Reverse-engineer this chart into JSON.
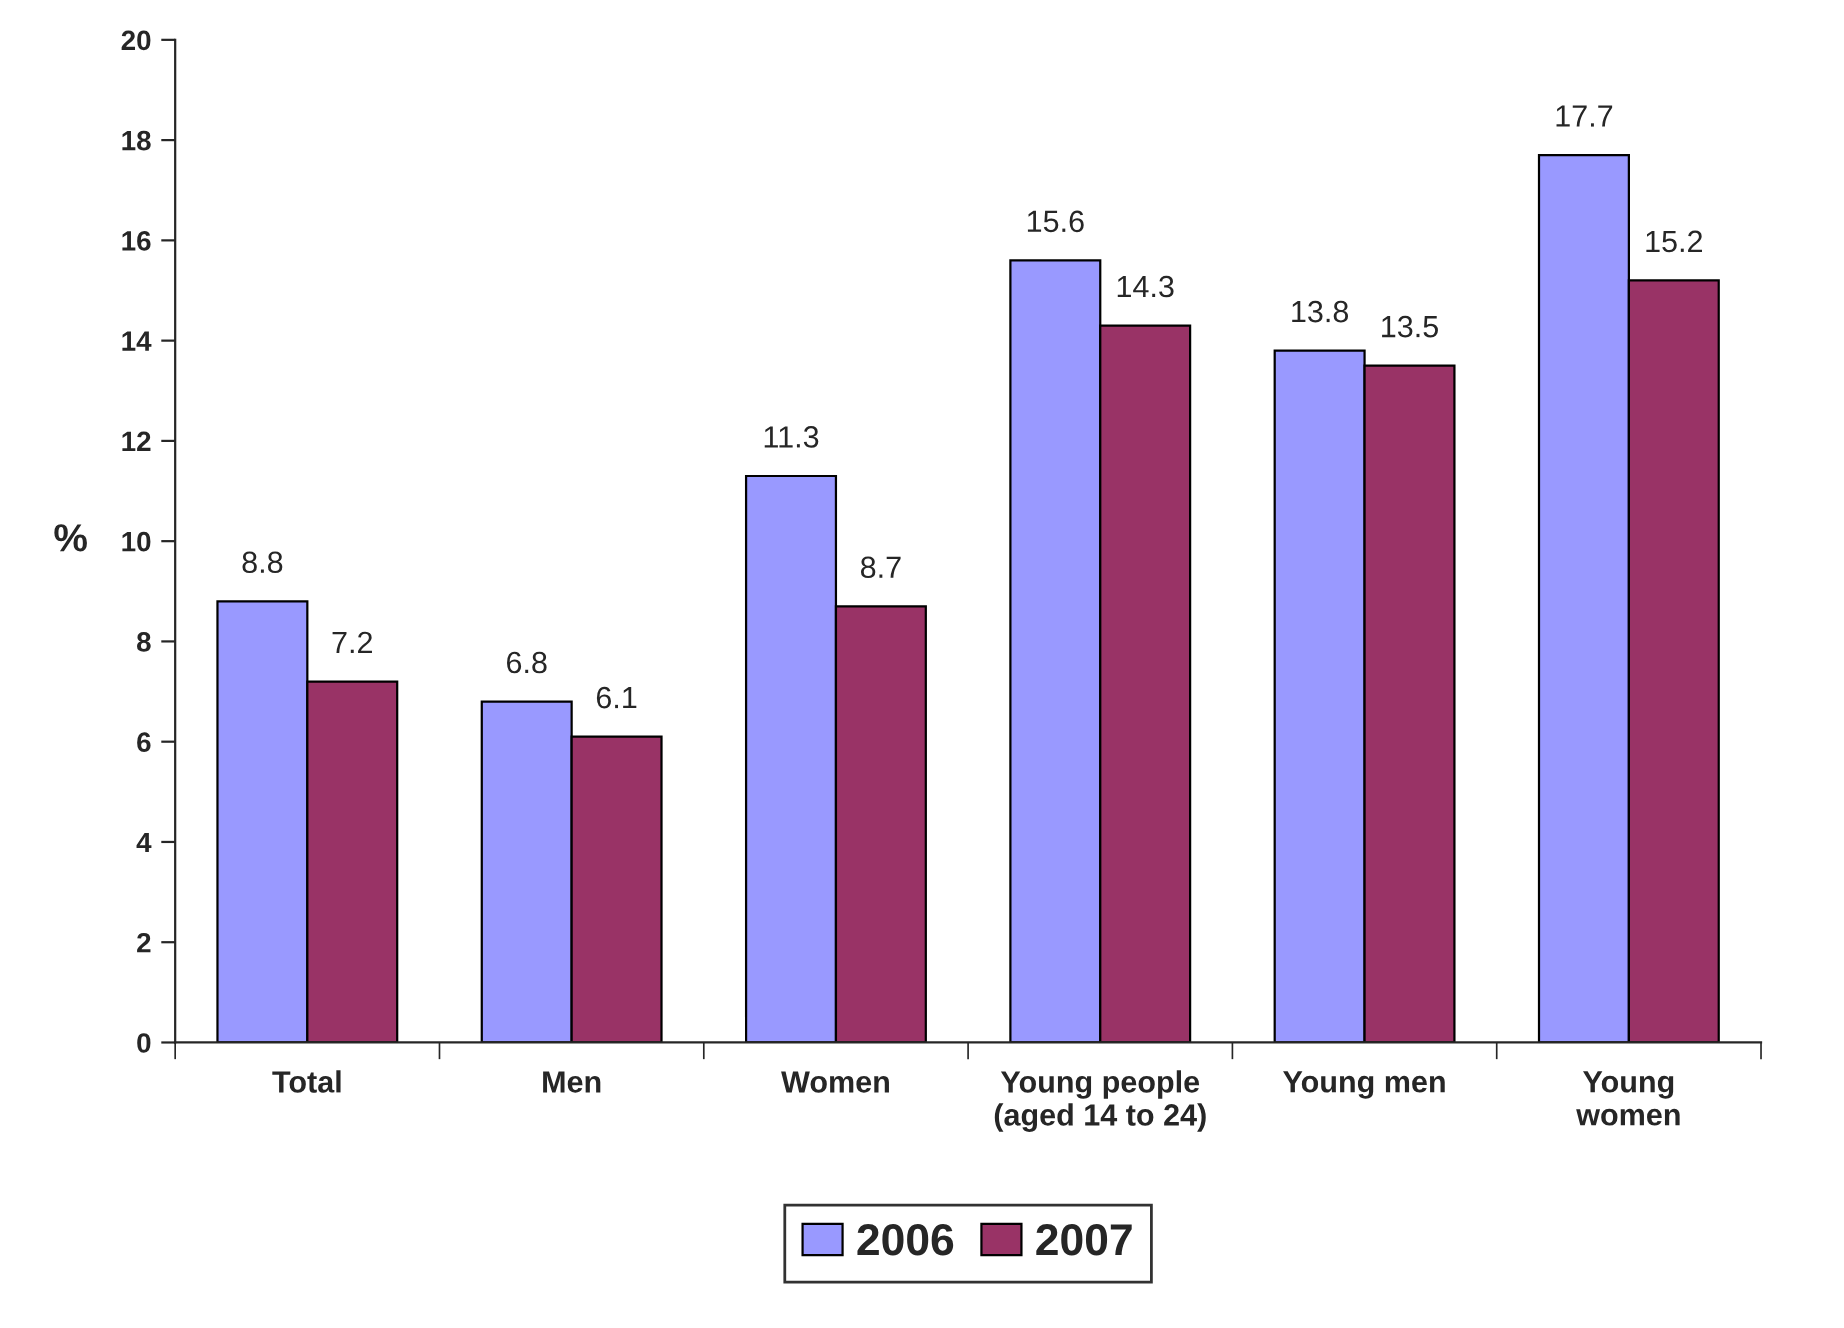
{
  "chart_data": {
    "type": "bar",
    "ylabel": "%",
    "categories": [
      "Total",
      "Men",
      "Women",
      "Young people\n(aged 14 to 24)",
      "Young men",
      "Young\nwomen"
    ],
    "series": [
      {
        "name": "2006",
        "color": "#9999ff",
        "values": [
          8.8,
          6.8,
          11.3,
          15.6,
          13.8,
          17.7
        ]
      },
      {
        "name": "2007",
        "color": "#993366",
        "values": [
          7.2,
          6.1,
          8.7,
          14.3,
          13.5,
          15.2
        ]
      }
    ],
    "ylim": [
      0,
      20
    ],
    "yticks": [
      0,
      2,
      4,
      6,
      8,
      10,
      12,
      14,
      16,
      18,
      20
    ],
    "data_labels": true,
    "grid": false,
    "legend": "bottom"
  }
}
